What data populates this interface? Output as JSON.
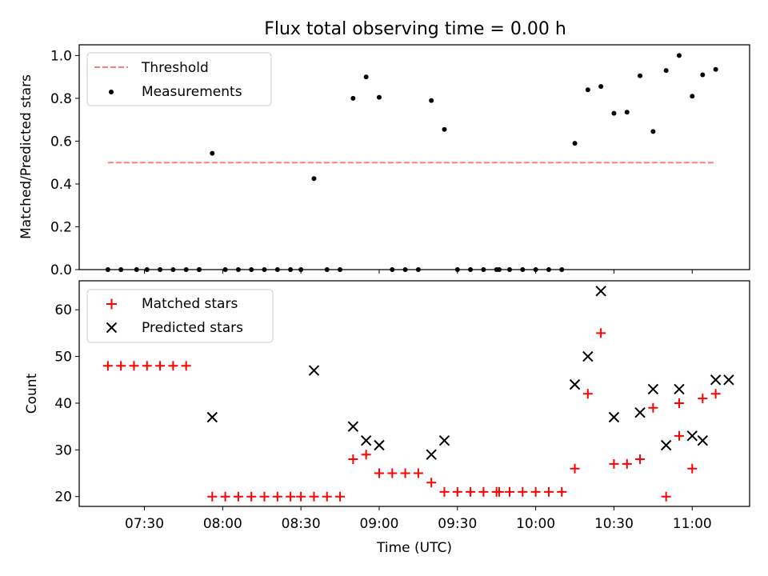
{
  "figure_title": "Flux total observing time = 0.00 h",
  "chart_data": [
    {
      "type": "scatter",
      "ylabel": "Matched/Predicted stars",
      "xlim_minutes": [
        425,
        682
      ],
      "ylim": [
        0,
        1.05
      ],
      "yticks": [
        0.0,
        0.2,
        0.4,
        0.6,
        0.8,
        1.0
      ],
      "ytick_labels": [
        "0.0",
        "0.2",
        "0.4",
        "0.6",
        "0.8",
        "1.0"
      ],
      "legend": {
        "position": "upper-left",
        "threshold_label": "Threshold",
        "measurements_label": "Measurements"
      },
      "threshold": {
        "value": 0.5,
        "x_start": 436,
        "x_end": 669,
        "color": "#ff7f7f"
      },
      "measurements_color": "#000000",
      "series": [
        {
          "name": "Measurements",
          "points": [
            [
              436,
              0
            ],
            [
              441,
              0
            ],
            [
              447,
              0
            ],
            [
              451,
              0
            ],
            [
              456,
              0
            ],
            [
              461,
              0
            ],
            [
              466,
              0
            ],
            [
              471,
              0
            ],
            [
              471,
              0
            ],
            [
              476,
              0.543
            ],
            [
              481,
              0
            ],
            [
              486,
              0
            ],
            [
              491,
              0
            ],
            [
              496,
              0
            ],
            [
              501,
              0
            ],
            [
              506,
              0
            ],
            [
              510,
              0
            ],
            [
              515,
              0.425
            ],
            [
              520,
              0
            ],
            [
              525,
              0
            ],
            [
              530,
              0.8
            ],
            [
              535,
              0.9
            ],
            [
              540,
              0.805
            ],
            [
              545,
              0
            ],
            [
              550,
              0
            ],
            [
              555,
              0
            ],
            [
              560,
              0.79
            ],
            [
              565,
              0.655
            ],
            [
              570,
              0
            ],
            [
              575,
              0
            ],
            [
              580,
              0
            ],
            [
              585,
              0
            ],
            [
              586,
              0
            ],
            [
              590,
              0
            ],
            [
              595,
              0
            ],
            [
              600,
              0
            ],
            [
              605,
              0
            ],
            [
              610,
              0
            ],
            [
              615,
              0.59
            ],
            [
              620,
              0.84
            ],
            [
              625,
              0.855
            ],
            [
              630,
              0.73
            ],
            [
              635,
              0.735
            ],
            [
              640,
              0.905
            ],
            [
              645,
              0.645
            ],
            [
              650,
              0.93
            ],
            [
              655,
              1.0
            ],
            [
              660,
              0.81
            ],
            [
              664,
              0.91
            ],
            [
              669,
              0.935
            ]
          ]
        }
      ]
    },
    {
      "type": "scatter",
      "xlabel": "Time (UTC)",
      "ylabel": "Count",
      "xlim_minutes": [
        425,
        682
      ],
      "ylim": [
        17.9,
        66.2
      ],
      "yticks": [
        20,
        30,
        40,
        50,
        60
      ],
      "ytick_labels": [
        "20",
        "30",
        "40",
        "50",
        "60"
      ],
      "xticks_minutes": [
        450,
        480,
        510,
        540,
        570,
        600,
        630,
        660
      ],
      "xtick_labels": [
        "07:30",
        "08:00",
        "08:30",
        "09:00",
        "09:30",
        "10:00",
        "10:30",
        "11:00"
      ],
      "legend": {
        "position": "upper-left",
        "matched_label": "Matched stars",
        "predicted_label": "Predicted stars"
      },
      "matched_color": "#ff0000",
      "predicted_color": "#000000",
      "series": [
        {
          "name": "Matched stars",
          "marker": "plus",
          "points": [
            [
              436,
              48
            ],
            [
              441,
              48
            ],
            [
              446,
              48
            ],
            [
              451,
              48
            ],
            [
              456,
              48
            ],
            [
              461,
              48
            ],
            [
              466,
              48
            ],
            [
              476,
              20
            ],
            [
              481,
              20
            ],
            [
              486,
              20
            ],
            [
              491,
              20
            ],
            [
              496,
              20
            ],
            [
              501,
              20
            ],
            [
              506,
              20
            ],
            [
              510,
              20
            ],
            [
              515,
              20
            ],
            [
              520,
              20
            ],
            [
              525,
              20
            ],
            [
              530,
              28
            ],
            [
              535,
              29
            ],
            [
              540,
              25
            ],
            [
              545,
              25
            ],
            [
              550,
              25
            ],
            [
              555,
              25
            ],
            [
              560,
              23
            ],
            [
              565,
              21
            ],
            [
              570,
              21
            ],
            [
              575,
              21
            ],
            [
              580,
              21
            ],
            [
              585,
              21
            ],
            [
              586,
              21
            ],
            [
              590,
              21
            ],
            [
              595,
              21
            ],
            [
              600,
              21
            ],
            [
              605,
              21
            ],
            [
              610,
              21
            ],
            [
              615,
              26
            ],
            [
              620,
              42
            ],
            [
              625,
              55
            ],
            [
              630,
              27
            ],
            [
              635,
              27
            ],
            [
              640,
              28
            ],
            [
              645,
              39
            ],
            [
              650,
              20
            ],
            [
              655,
              40
            ],
            [
              655,
              33
            ],
            [
              660,
              26
            ],
            [
              664,
              41
            ],
            [
              669,
              42
            ]
          ]
        },
        {
          "name": "Predicted stars",
          "marker": "x",
          "points": [
            [
              476,
              37
            ],
            [
              515,
              47
            ],
            [
              530,
              35
            ],
            [
              535,
              32
            ],
            [
              540,
              31
            ],
            [
              560,
              29
            ],
            [
              565,
              32
            ],
            [
              615,
              44
            ],
            [
              620,
              50
            ],
            [
              625,
              64
            ],
            [
              630,
              37
            ],
            [
              640,
              38
            ],
            [
              645,
              43
            ],
            [
              650,
              31
            ],
            [
              655,
              43
            ],
            [
              660,
              33
            ],
            [
              664,
              32
            ],
            [
              669,
              45
            ],
            [
              674,
              45
            ]
          ]
        }
      ]
    }
  ]
}
